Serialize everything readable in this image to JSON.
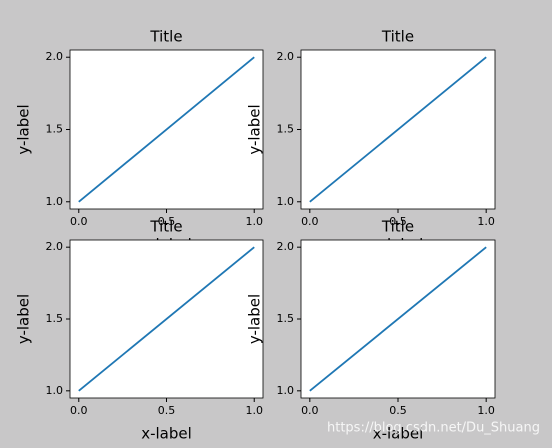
{
  "chart_data": [
    {
      "type": "line",
      "title": "Title",
      "xlabel": "x-label",
      "ylabel": "y-label",
      "x": [
        0,
        1
      ],
      "values": [
        1,
        2
      ],
      "color": "#1f77b4",
      "xlim": [
        -0.05,
        1.05
      ],
      "ylim": [
        0.95,
        2.05
      ],
      "xticks": [
        {
          "value": 0,
          "label": "0.0"
        },
        0.5,
        {
          "value": 1,
          "label": "1.0"
        }
      ],
      "yticks": [
        {
          "value": 1,
          "label": "1.0"
        },
        1.5,
        {
          "value": 2,
          "label": "2.0"
        }
      ]
    },
    {
      "type": "line",
      "title": "Title",
      "xlabel": "x-label",
      "ylabel": "y-label",
      "x": [
        0,
        1
      ],
      "values": [
        1,
        2
      ],
      "color": "#1f77b4",
      "xlim": [
        -0.05,
        1.05
      ],
      "ylim": [
        0.95,
        2.05
      ],
      "xticks": [
        {
          "value": 0,
          "label": "0.0"
        },
        0.5,
        {
          "value": 1,
          "label": "1.0"
        }
      ],
      "yticks": [
        {
          "value": 1,
          "label": "1.0"
        },
        1.5,
        {
          "value": 2,
          "label": "2.0"
        }
      ]
    },
    {
      "type": "line",
      "title": "Title",
      "xlabel": "x-label",
      "ylabel": "y-label",
      "x": [
        0,
        1
      ],
      "values": [
        1,
        2
      ],
      "color": "#1f77b4",
      "xlim": [
        -0.05,
        1.05
      ],
      "ylim": [
        0.95,
        2.05
      ],
      "xticks": [
        {
          "value": 0,
          "label": "0.0"
        },
        0.5,
        {
          "value": 1,
          "label": "1.0"
        }
      ],
      "yticks": [
        {
          "value": 1,
          "label": "1.0"
        },
        1.5,
        {
          "value": 2,
          "label": "2.0"
        }
      ]
    },
    {
      "type": "line",
      "title": "Title",
      "xlabel": "x-label",
      "ylabel": "y-label",
      "x": [
        0,
        1
      ],
      "values": [
        1,
        2
      ],
      "color": "#1f77b4",
      "xlim": [
        -0.05,
        1.05
      ],
      "ylim": [
        0.95,
        2.05
      ],
      "xticks": [
        {
          "value": 0,
          "label": "0.0"
        },
        0.5,
        {
          "value": 1,
          "label": "1.0"
        }
      ],
      "yticks": [
        {
          "value": 1,
          "label": "1.0"
        },
        1.5,
        {
          "value": 2,
          "label": "2.0"
        }
      ]
    }
  ],
  "watermark": "https://blog.csdn.net/Du_Shuang"
}
